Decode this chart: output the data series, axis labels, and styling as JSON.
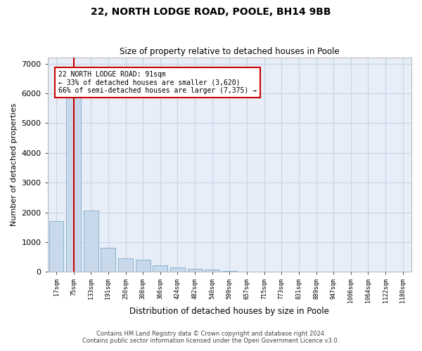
{
  "title1": "22, NORTH LODGE ROAD, POOLE, BH14 9BB",
  "title2": "Size of property relative to detached houses in Poole",
  "xlabel": "Distribution of detached houses by size in Poole",
  "ylabel": "Number of detached properties",
  "bar_labels": [
    "17sqm",
    "75sqm",
    "133sqm",
    "191sqm",
    "250sqm",
    "308sqm",
    "366sqm",
    "424sqm",
    "482sqm",
    "540sqm",
    "599sqm",
    "657sqm",
    "715sqm",
    "773sqm",
    "831sqm",
    "889sqm",
    "947sqm",
    "1006sqm",
    "1064sqm",
    "1122sqm",
    "1180sqm"
  ],
  "bar_values": [
    1700,
    5900,
    2050,
    800,
    450,
    420,
    230,
    140,
    110,
    70,
    40,
    0,
    0,
    0,
    0,
    0,
    0,
    0,
    0,
    0,
    0
  ],
  "bar_color": "#c9d9ec",
  "bar_edge_color": "#7aaacb",
  "property_line_color": "#cc0000",
  "annotation_title": "22 NORTH LODGE ROAD: 91sqm",
  "annotation_line1": "← 33% of detached houses are smaller (3,620)",
  "annotation_line2": "66% of semi-detached houses are larger (7,375) →",
  "annotation_box_color": "#ffffff",
  "annotation_box_edge": "#cc0000",
  "ylim": [
    0,
    7200
  ],
  "yticks": [
    0,
    1000,
    2000,
    3000,
    4000,
    5000,
    6000,
    7000
  ],
  "grid_color": "#c8d4e8",
  "bg_color": "#e8eef8",
  "footer1": "Contains HM Land Registry data © Crown copyright and database right 2024.",
  "footer2": "Contains public sector information licensed under the Open Government Licence v3.0."
}
